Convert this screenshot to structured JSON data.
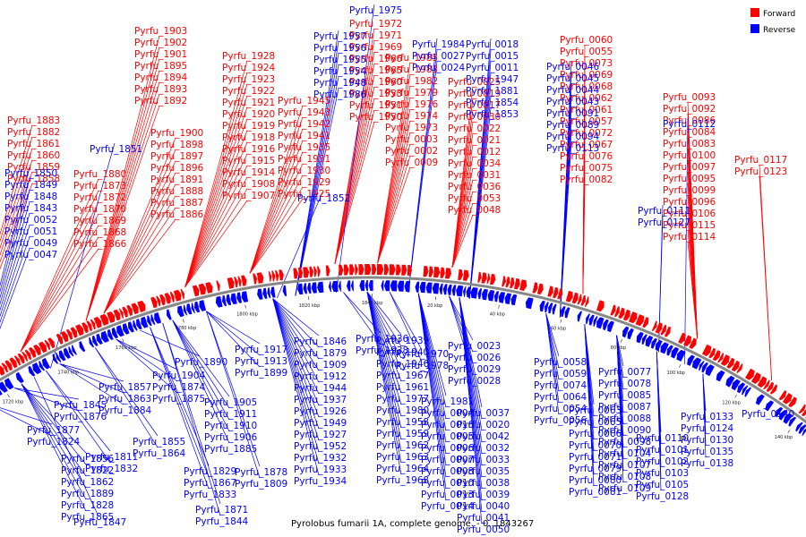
{
  "colors": {
    "forward": "#ff0000",
    "reverse": "#0000ff",
    "backbone": "#888888",
    "background": "#ffffff"
  },
  "legend": [
    {
      "label": "Forward",
      "color": "#ff0000"
    },
    {
      "label": "Reverse",
      "color": "#0000ff"
    }
  ],
  "caption": "Pyrolobus fumarii 1A, complete genome. - 0..1843267",
  "ticks": [
    "1700 kbp",
    "1720 kbp",
    "1740 kbp",
    "1760 kbp",
    "1780 kbp",
    "1800 kbp",
    "1820 kbp",
    "1840 kbp",
    "20 kbp",
    "40 kbp",
    "60 kbp",
    "80 kbp",
    "100 kbp",
    "120 kbp",
    "140 kbp"
  ],
  "forward_labels": [
    "Pyrfu_1903",
    "Pyrfu_1902",
    "Pyrfu_1901",
    "Pyrfu_1895",
    "Pyrfu_1894",
    "Pyrfu_1893",
    "Pyrfu_1892",
    "Pyrfu_1883",
    "Pyrfu_1882",
    "Pyrfu_1861",
    "Pyrfu_1860",
    "Pyrfu_1859",
    "Pyrfu_1858",
    "Pyrfu_1900",
    "Pyrfu_1898",
    "Pyrfu_1897",
    "Pyrfu_1896",
    "Pyrfu_1891",
    "Pyrfu_1888",
    "Pyrfu_1887",
    "Pyrfu_1886",
    "Pyrfu_1880",
    "Pyrfu_1873",
    "Pyrfu_1872",
    "Pyrfu_1870",
    "Pyrfu_1869",
    "Pyrfu_1868",
    "Pyrfu_1866",
    "Pyrfu_1928",
    "Pyrfu_1924",
    "Pyrfu_1923",
    "Pyrfu_1922",
    "Pyrfu_1921",
    "Pyrfu_1920",
    "Pyrfu_1919",
    "Pyrfu_1918",
    "Pyrfu_1916",
    "Pyrfu_1915",
    "Pyrfu_1914",
    "Pyrfu_1908",
    "Pyrfu_1907",
    "Pyrfu_1945",
    "Pyrfu_1943",
    "Pyrfu_1942",
    "Pyrfu_1941",
    "Pyrfu_1935",
    "Pyrfu_1931",
    "Pyrfu_1930",
    "Pyrfu_1929",
    "Pyrfu_1925",
    "Pyrfu_1972",
    "Pyrfu_1971",
    "Pyrfu_1969",
    "Pyrfu_1966",
    "Pyrfu_1965",
    "Pyrfu_1960",
    "Pyrfu_1953",
    "Pyrfu_1951",
    "Pyrfu_1950",
    "Pyrfu_1985",
    "Pyrfu_1983",
    "Pyrfu_1982",
    "Pyrfu_1979",
    "Pyrfu_1976",
    "Pyrfu_1974",
    "Pyrfu_1973",
    "Pyrfu_0003",
    "Pyrfu_0002",
    "Pyrfu_0009",
    "Pyrfu_0025",
    "Pyrfu_0019",
    "Pyrfu_0017",
    "Pyrfu_0030",
    "Pyrfu_0022",
    "Pyrfu_0021",
    "Pyrfu_0012",
    "Pyrfu_0034",
    "Pyrfu_0031",
    "Pyrfu_0036",
    "Pyrfu_0053",
    "Pyrfu_0048",
    "Pyrfu_0060",
    "Pyrfu_0055",
    "Pyrfu_0073",
    "Pyrfu_0069",
    "Pyrfu_0068",
    "Pyrfu_0062",
    "Pyrfu_0061",
    "Pyrfu_0057",
    "Pyrfu_0072",
    "Pyrfu_0067",
    "Pyrfu_0076",
    "Pyrfu_0075",
    "Pyrfu_0082",
    "Pyrfu_0093",
    "Pyrfu_0092",
    "Pyrfu_0086",
    "Pyrfu_0084",
    "Pyrfu_0083",
    "Pyrfu_0100",
    "Pyrfu_0097",
    "Pyrfu_0095",
    "Pyrfu_0099",
    "Pyrfu_0096",
    "Pyrfu_0106",
    "Pyrfu_0115",
    "Pyrfu_0114",
    "Pyrfu_0117",
    "Pyrfu_0123"
  ],
  "reverse_labels": [
    "Pyrfu_1975",
    "Pyrfu_1957",
    "Pyrfu_1956",
    "Pyrfu_1955",
    "Pyrfu_1954",
    "Pyrfu_1948",
    "Pyrfu_1986",
    "Pyrfu_1984",
    "Pyrfu_0027",
    "Pyrfu_0024",
    "Pyrfu_0018",
    "Pyrfu_0015",
    "Pyrfu_0011",
    "Pyrfu_1947",
    "Pyrfu_1881",
    "Pyrfu_1854",
    "Pyrfu_1853",
    "Pyrfu_1852",
    "Pyrfu_1851",
    "Pyrfu_1850",
    "Pyrfu_1849",
    "Pyrfu_1848",
    "Pyrfu_1843",
    "Pyrfu_0052",
    "Pyrfu_0051",
    "Pyrfu_0049",
    "Pyrfu_0047",
    "Pyrfu_0046",
    "Pyrfu_0045",
    "Pyrfu_0044",
    "Pyrfu_0043",
    "Pyrfu_0091",
    "Pyrfu_0089",
    "Pyrfu_0094",
    "Pyrfu_0113",
    "Pyrfu_0112",
    "Pyrfu_0111",
    "Pyrfu_0127",
    "Pyrfu_1890",
    "Pyrfu_1917",
    "Pyrfu_1913",
    "Pyrfu_1899",
    "Pyrfu_1904",
    "Pyrfu_1874",
    "Pyrfu_1875",
    "Pyrfu_1857",
    "Pyrfu_1863",
    "Pyrfu_1884",
    "Pyrfu_1845",
    "Pyrfu_1876",
    "Pyrfu_1905",
    "Pyrfu_1911",
    "Pyrfu_1910",
    "Pyrfu_1906",
    "Pyrfu_1885",
    "Pyrfu_1877",
    "Pyrfu_1824",
    "Pyrfu_1855",
    "Pyrfu_1864",
    "Pyrfu_1811",
    "Pyrfu_1832",
    "Pyrfu_1856",
    "Pyrfu_1822",
    "Pyrfu_1862",
    "Pyrfu_1889",
    "Pyrfu_1828",
    "Pyrfu_1865",
    "Pyrfu_1829",
    "Pyrfu_1867",
    "Pyrfu_1833",
    "Pyrfu_1847",
    "Pyrfu_1871",
    "Pyrfu_1844",
    "Pyrfu_1878",
    "Pyrfu_1809",
    "Pyrfu_1846",
    "Pyrfu_1879",
    "Pyrfu_1909",
    "Pyrfu_1912",
    "Pyrfu_1944",
    "Pyrfu_1937",
    "Pyrfu_1926",
    "Pyrfu_1949",
    "Pyrfu_1927",
    "Pyrfu_1952",
    "Pyrfu_1932",
    "Pyrfu_1933",
    "Pyrfu_1934",
    "Pyrfu_1936",
    "Pyrfu_1938",
    "Pyrfu_1939",
    "Pyrfu_1940",
    "Pyrfu_1946",
    "Pyrfu_1967",
    "Pyrfu_1961",
    "Pyrfu_1977",
    "Pyrfu_1980",
    "Pyrfu_1958",
    "Pyrfu_1959",
    "Pyrfu_1962",
    "Pyrfu_1963",
    "Pyrfu_1964",
    "Pyrfu_1968",
    "Pyrfu_1970",
    "Pyrfu_1978",
    "Pyrfu_1981",
    "Pyrfu_0004",
    "Pyrfu_0016",
    "Pyrfu_0005",
    "Pyrfu_0006",
    "Pyrfu_0007",
    "Pyrfu_0008",
    "Pyrfu_0010",
    "Pyrfu_0013",
    "Pyrfu_0014",
    "Pyrfu_0023",
    "Pyrfu_0026",
    "Pyrfu_0029",
    "Pyrfu_0028",
    "Pyrfu_0037",
    "Pyrfu_0020",
    "Pyrfu_0042",
    "Pyrfu_0032",
    "Pyrfu_0033",
    "Pyrfu_0035",
    "Pyrfu_0038",
    "Pyrfu_0039",
    "Pyrfu_0040",
    "Pyrfu_0041",
    "Pyrfu_0050",
    "Pyrfu_0058",
    "Pyrfu_0059",
    "Pyrfu_0074",
    "Pyrfu_0064",
    "Pyrfu_0054",
    "Pyrfu_0056",
    "Pyrfu_0063",
    "Pyrfu_0065",
    "Pyrfu_0066",
    "Pyrfu_0070",
    "Pyrfu_0071",
    "Pyrfu_0079",
    "Pyrfu_0080",
    "Pyrfu_0081",
    "Pyrfu_0077",
    "Pyrfu_0078",
    "Pyrfu_0085",
    "Pyrfu_0087",
    "Pyrfu_0088",
    "Pyrfu_0090",
    "Pyrfu_0098",
    "Pyrfu_0104",
    "Pyrfu_0107",
    "Pyrfu_0108",
    "Pyrfu_0109",
    "Pyrfu_0110",
    "Pyrfu_0101",
    "Pyrfu_0102",
    "Pyrfu_0103",
    "Pyrfu_0105",
    "Pyrfu_0128",
    "Pyrfu_0133",
    "Pyrfu_0124",
    "Pyrfu_0130",
    "Pyrfu_0135",
    "Pyrfu_0138",
    "Pyrfu_0140",
    "Pyrfu_0141",
    "Pyrfu_0143",
    "Pyrfu_0152"
  ]
}
